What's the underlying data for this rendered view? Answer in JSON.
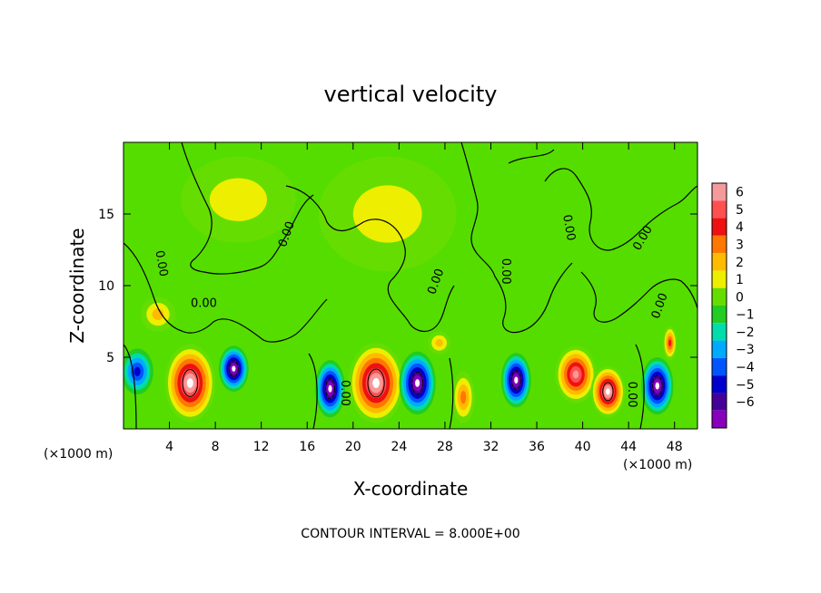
{
  "chart_data": {
    "type": "heatmap",
    "title": "vertical velocity",
    "xlabel": "X-coordinate",
    "ylabel": "Z-coordinate",
    "x_unit_left": "(×1000 m)",
    "x_unit_right": "(×1000 m)",
    "xlim": [
      0,
      50
    ],
    "ylim": [
      0,
      20
    ],
    "xticks": [
      4,
      8,
      12,
      16,
      20,
      24,
      28,
      32,
      36,
      40,
      44,
      48
    ],
    "yticks": [
      5,
      10,
      15
    ],
    "colorbar": {
      "levels": [
        6,
        5,
        4,
        3,
        2,
        1,
        0,
        -1,
        -2,
        -3,
        -4,
        -5,
        -6
      ],
      "colors": [
        "#f59a9a",
        "#ff5050",
        "#ee1111",
        "#ff7700",
        "#ffbb00",
        "#eeee00",
        "#66dd00",
        "#22cc22",
        "#00ddaa",
        "#00aaff",
        "#0055ff",
        "#0000cc",
        "#440099",
        "#8800bb"
      ]
    },
    "background_value": 0.5,
    "contour_label": "0.00",
    "footer": "CONTOUR INTERVAL = 8.000E+00",
    "features": [
      {
        "x": 5.8,
        "z": 3.2,
        "w": 2.2,
        "h": 2.7,
        "value": 7
      },
      {
        "x": 9.6,
        "z": 4.2,
        "w": 1.3,
        "h": 1.6,
        "value": -7
      },
      {
        "x": 1.2,
        "z": 4.0,
        "w": 1.4,
        "h": 1.6,
        "value": -4
      },
      {
        "x": 18.0,
        "z": 2.8,
        "w": 1.3,
        "h": 2.0,
        "value": -7
      },
      {
        "x": 22.0,
        "z": 3.2,
        "w": 2.4,
        "h": 2.8,
        "value": 7
      },
      {
        "x": 25.6,
        "z": 3.2,
        "w": 1.6,
        "h": 2.2,
        "value": -7
      },
      {
        "x": 29.6,
        "z": 2.2,
        "w": 1.0,
        "h": 1.8,
        "value": 3
      },
      {
        "x": 34.2,
        "z": 3.4,
        "w": 1.3,
        "h": 1.9,
        "value": -7
      },
      {
        "x": 39.4,
        "z": 3.8,
        "w": 1.8,
        "h": 2.0,
        "value": 6
      },
      {
        "x": 42.2,
        "z": 2.6,
        "w": 1.5,
        "h": 1.8,
        "value": 7
      },
      {
        "x": 46.5,
        "z": 3.0,
        "w": 1.4,
        "h": 2.0,
        "value": -7
      },
      {
        "x": 47.6,
        "z": 6.0,
        "w": 0.6,
        "h": 1.2,
        "value": 4
      },
      {
        "x": 3.0,
        "z": 8.0,
        "w": 1.5,
        "h": 1.2,
        "value": 2
      },
      {
        "x": 27.5,
        "z": 6.0,
        "w": 1.0,
        "h": 0.8,
        "value": 1.5
      },
      {
        "x": 23.0,
        "z": 15.0,
        "w": 6.0,
        "h": 4.0,
        "value": 1
      },
      {
        "x": 10.0,
        "z": 16.0,
        "w": 5.0,
        "h": 3.0,
        "value": 1
      }
    ]
  }
}
